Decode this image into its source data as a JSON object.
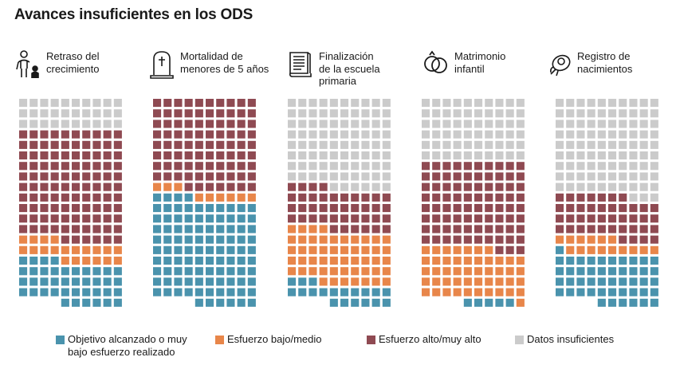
{
  "title": "Avances insuficientes en los ODS",
  "colors": {
    "achieved": "#4a93ad",
    "low_medium": "#e8864a",
    "high": "#8f4a52",
    "insufficient": "#cbcbcb"
  },
  "legend": {
    "achieved": {
      "label_line1": "Objetivo alcanzado o muy",
      "label_line2": "bajo esfuerzo realizado"
    },
    "low_medium": {
      "label": "Esfuerzo bajo/medio"
    },
    "high": {
      "label": "Esfuerzo alto/muy alto"
    },
    "insufficient": {
      "label": "Datos insuficientes"
    }
  },
  "panels": [
    {
      "icon": "child-growth-icon",
      "label_lines": [
        "Retraso del",
        "crecimiento"
      ]
    },
    {
      "icon": "gravestone-icon",
      "label_lines": [
        "Mortalidad de",
        "menores de 5 años"
      ]
    },
    {
      "icon": "book-icon",
      "label_lines": [
        "Finalización",
        "de la escuela",
        "primaria"
      ]
    },
    {
      "icon": "rings-icon",
      "label_lines": [
        "Matrimonio",
        "infantil"
      ]
    },
    {
      "icon": "baby-icon",
      "label_lines": [
        "Registro de",
        "nacimientos"
      ]
    }
  ],
  "chart_data": {
    "type": "waffle",
    "title": "Avances insuficientes en los ODS",
    "grid": {
      "columns": 10,
      "rows": 20,
      "units_per_panel": 196
    },
    "categories": [
      "Objetivo alcanzado o muy bajo esfuerzo realizado",
      "Esfuerzo bajo/medio",
      "Esfuerzo alto/muy alto",
      "Datos insuficientes"
    ],
    "series": [
      {
        "name": "Retraso del crecimiento",
        "counts": {
          "achieved": 40,
          "low_medium": 20,
          "high": 106,
          "insufficient": 30
        }
      },
      {
        "name": "Mortalidad de menores de 5 años",
        "counts": {
          "achieved": 100,
          "low_medium": 9,
          "high": 87,
          "insufficient": 0
        }
      },
      {
        "name": "Finalización de la escuela primaria",
        "counts": {
          "achieved": 19,
          "low_medium": 51,
          "high": 40,
          "insufficient": 86
        }
      },
      {
        "name": "Matrimonio infantil",
        "counts": {
          "achieved": 5,
          "low_medium": 48,
          "high": 83,
          "insufficient": 60
        }
      },
      {
        "name": "Registro de nacimientos",
        "counts": {
          "achieved": 47,
          "low_medium": 15,
          "high": 41,
          "insufficient": 93
        }
      }
    ]
  }
}
